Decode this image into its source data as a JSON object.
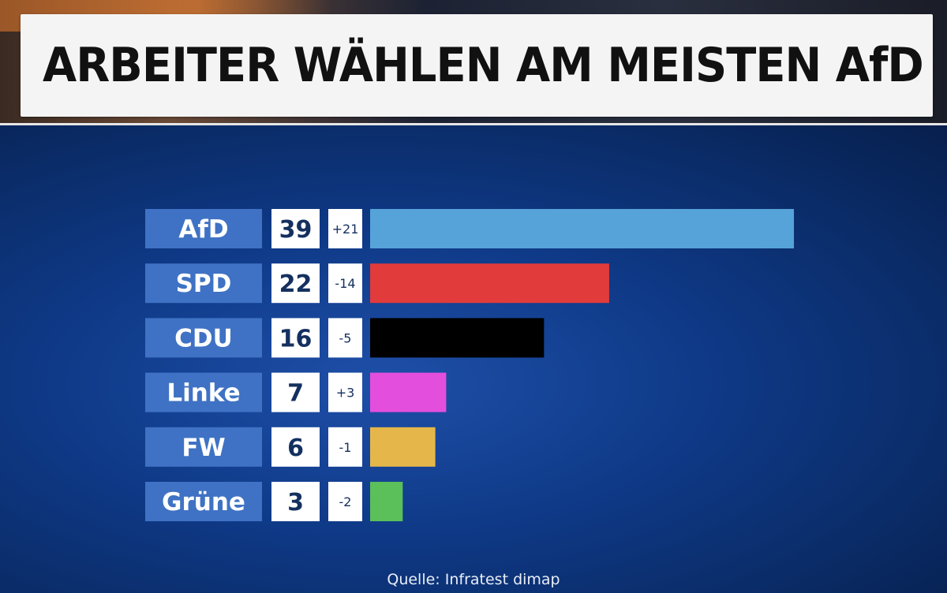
{
  "headline": "ARBEITER WÄHLEN AM MEISTEN AfD",
  "source": "Quelle: Infratest dimap",
  "chart_data": {
    "type": "bar",
    "orientation": "horizontal",
    "title": "ARBEITER WÄHLEN AM MEISTEN AfD",
    "categories": [
      "AfD",
      "SPD",
      "CDU",
      "Linke",
      "FW",
      "Grüne"
    ],
    "values": [
      39,
      22,
      16,
      7,
      6,
      3
    ],
    "changes": [
      "+21",
      "-14",
      "-5",
      "+3",
      "-1",
      "-2"
    ],
    "colors": [
      "#55a3d9",
      "#e13b3b",
      "#000000",
      "#e34fdc",
      "#e5b74a",
      "#5bbf5a"
    ],
    "grid": false,
    "legend": "none"
  }
}
